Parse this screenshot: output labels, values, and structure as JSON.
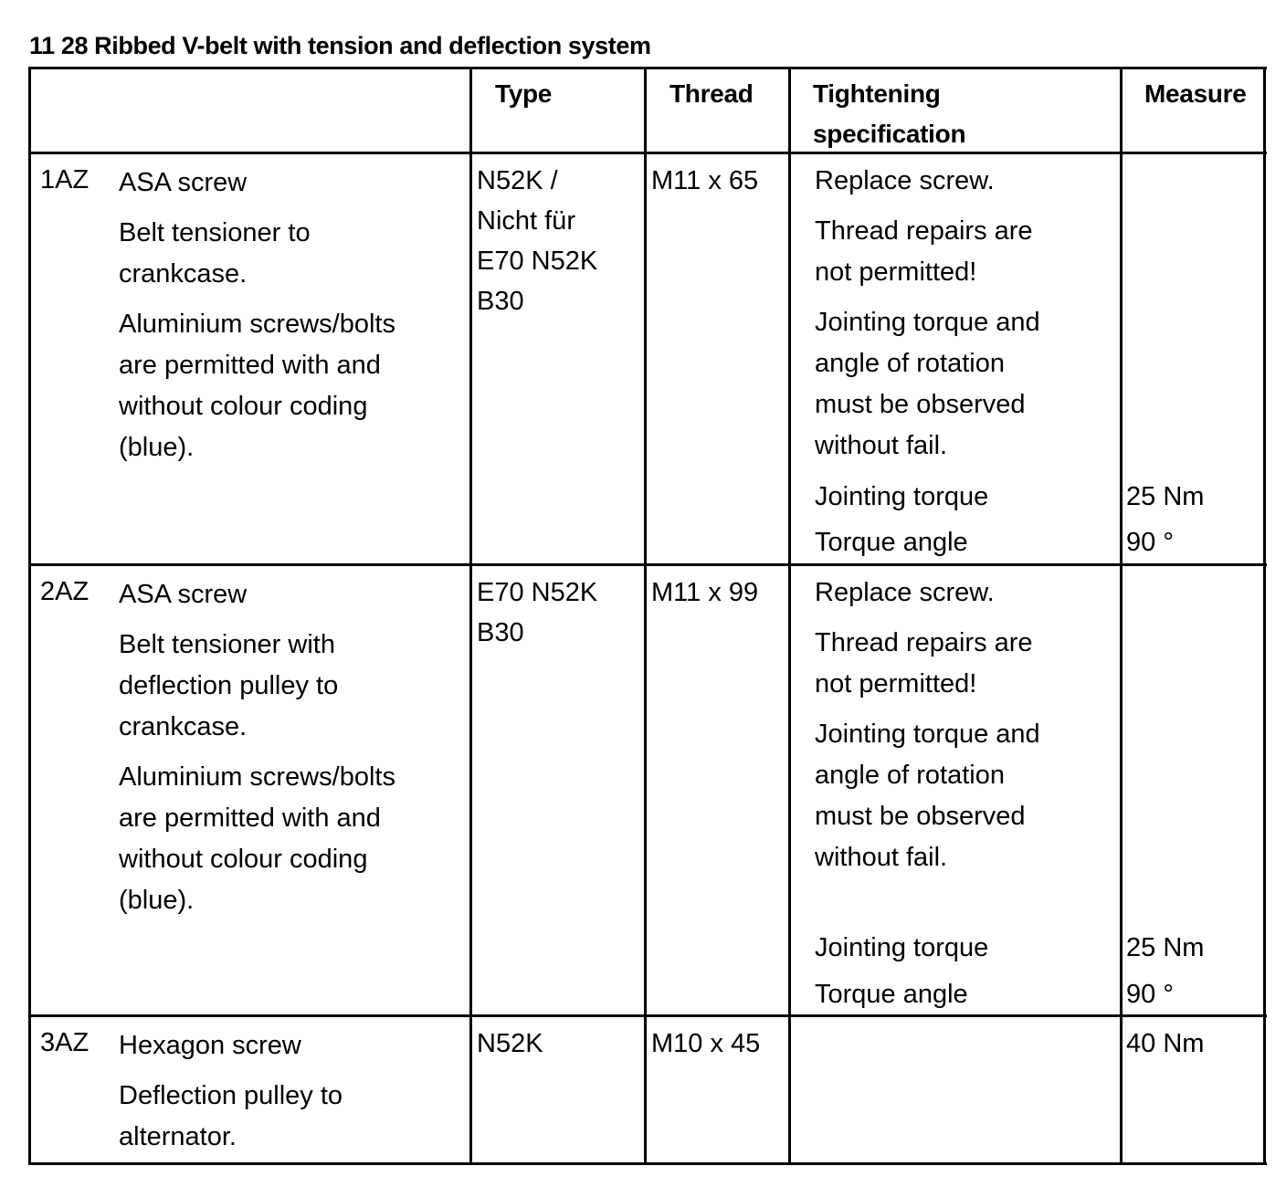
{
  "title": "11 28 Ribbed V-belt with tension and deflection system",
  "headers": {
    "type": "Type",
    "thread": "Thread",
    "spec_line1": "Tightening",
    "spec_line2": "specification",
    "measure": "Measure"
  },
  "rows": [
    {
      "id": "1AZ",
      "name": "ASA screw",
      "desc1": [
        "Belt tensioner to",
        "crankcase."
      ],
      "desc2": [
        "Aluminium screws/bolts",
        "are permitted with and",
        "without colour coding",
        "(blue)."
      ],
      "type": [
        "N52K /",
        "Nicht für",
        "E70 N52K",
        "B30"
      ],
      "thread": "M11 x 65",
      "spec1": "Replace screw.",
      "spec2": [
        "Thread repairs are",
        "not permitted!"
      ],
      "spec3": [
        "Jointing torque and",
        "angle of rotation",
        "must be observed",
        "without fail."
      ],
      "torque_label": "Jointing torque",
      "torque_value": "25 Nm",
      "angle_label": "Torque angle",
      "angle_value": "90 °"
    },
    {
      "id": "2AZ",
      "name": "ASA screw",
      "desc1": [
        "Belt tensioner with",
        "deflection pulley to",
        "crankcase."
      ],
      "desc2": [
        "Aluminium screws/bolts",
        "are permitted with and",
        "without colour coding",
        "(blue)."
      ],
      "type": [
        "E70 N52K",
        "B30"
      ],
      "thread": "M11 x 99",
      "spec1": "Replace screw.",
      "spec2": [
        "Thread repairs are",
        "not permitted!"
      ],
      "spec3": [
        "Jointing torque and",
        "angle of rotation",
        "must be observed",
        "without fail."
      ],
      "torque_label": "Jointing torque",
      "torque_value": "25 Nm",
      "angle_label": "Torque angle",
      "angle_value": "90 °"
    },
    {
      "id": "3AZ",
      "name": "Hexagon screw",
      "desc1": [
        "Deflection pulley to",
        "alternator."
      ],
      "type": [
        "N52K"
      ],
      "thread": "M10 x 45",
      "measure": "40 Nm"
    }
  ]
}
